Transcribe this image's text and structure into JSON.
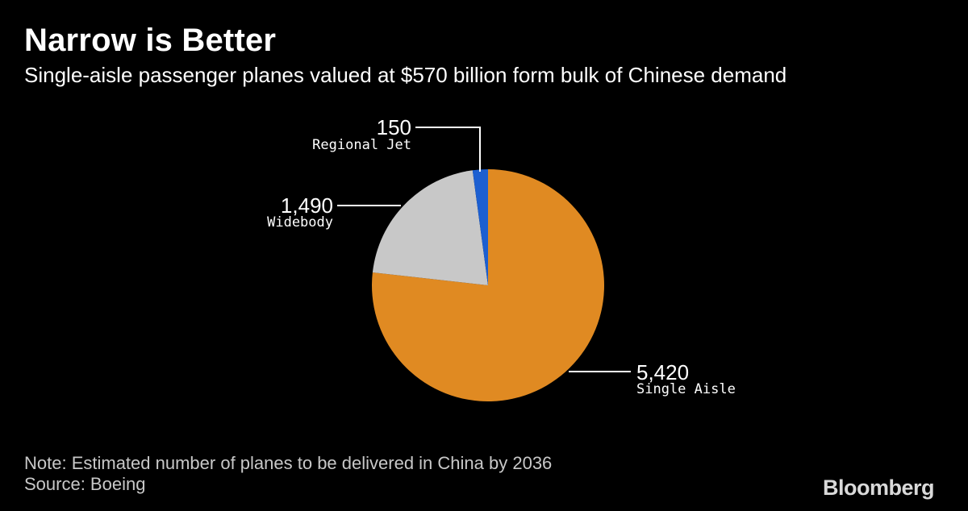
{
  "title": "Narrow is Better",
  "subtitle": "Single-aisle passenger planes valued at $570 billion form bulk of Chinese demand",
  "chart_data": {
    "type": "pie",
    "slices": [
      {
        "name": "Single Aisle",
        "value": 5420,
        "value_label": "5,420",
        "color": "#e08a22"
      },
      {
        "name": "Widebody",
        "value": 1490,
        "value_label": "1,490",
        "color": "#c8c8c8"
      },
      {
        "name": "Regional Jet",
        "value": 150,
        "value_label": "150",
        "color": "#1c5fd1"
      }
    ]
  },
  "footer": {
    "note": "Note: Estimated number of planes to be delivered in China by 2036",
    "source": "Source: Boeing",
    "brand": "Bloomberg"
  }
}
